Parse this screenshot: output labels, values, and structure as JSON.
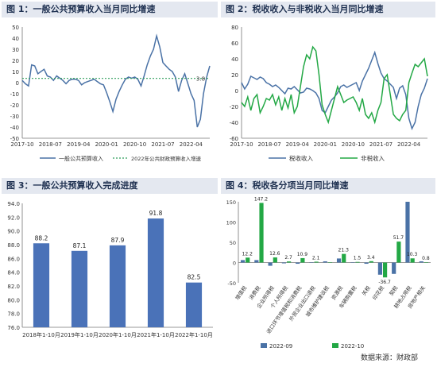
{
  "source": "数据来源：财政部",
  "chart_data": [
    {
      "id": "fig1",
      "type": "line",
      "title": "图 1：一般公共预算收入当月同比增速",
      "ylim": [
        -50,
        50
      ],
      "y_ticks": [
        "50",
        "40",
        "30",
        "20",
        "10",
        "0",
        "-10",
        "-20",
        "-30",
        "-40",
        "-50"
      ],
      "x_ticks": [
        "2017-10",
        "2018-07",
        "2019-04",
        "2020-01",
        "2020-10",
        "2021-07",
        "2022-04"
      ],
      "x": [
        "2017-10",
        "2017-11",
        "2017-12",
        "2018-01",
        "2018-02",
        "2018-03",
        "2018-04",
        "2018-05",
        "2018-06",
        "2018-07",
        "2018-08",
        "2018-09",
        "2018-10",
        "2018-11",
        "2018-12",
        "2019-01",
        "2019-02",
        "2019-03",
        "2019-04",
        "2019-05",
        "2019-06",
        "2019-07",
        "2019-08",
        "2019-09",
        "2019-10",
        "2019-11",
        "2019-12",
        "2020-01",
        "2020-02",
        "2020-03",
        "2020-04",
        "2020-05",
        "2020-06",
        "2020-07",
        "2020-08",
        "2020-09",
        "2020-10",
        "2020-11",
        "2020-12",
        "2021-01",
        "2021-02",
        "2021-03",
        "2021-04",
        "2021-05",
        "2021-06",
        "2021-07",
        "2021-08",
        "2021-09",
        "2021-10",
        "2021-11",
        "2021-12",
        "2022-01",
        "2022-02",
        "2022-03",
        "2022-04",
        "2022-05",
        "2022-06",
        "2022-07",
        "2022-08",
        "2022-09",
        "2022-10"
      ],
      "series": [
        {
          "name": "一般公共预算收入",
          "color": "#4a72a6",
          "values": [
            2,
            -1,
            -3,
            16,
            15,
            8,
            10,
            12,
            6,
            5,
            2,
            6,
            4,
            2,
            -1,
            2,
            3,
            3,
            2,
            -2,
            0,
            1,
            2,
            3,
            1,
            -1,
            -2,
            -9,
            -17,
            -26,
            -15,
            -8,
            -2,
            3,
            5,
            4,
            5,
            3,
            -3,
            6,
            16,
            24,
            30,
            42,
            32,
            18,
            15,
            12,
            10,
            5,
            -8,
            2,
            8,
            -1,
            -10,
            -16,
            -40,
            -33,
            -10,
            5,
            15
          ]
        },
        {
          "name": "2022年公共财政预算收入增速",
          "color": "#2e9e5b",
          "dashed": true,
          "values": [
            3.8,
            3.8,
            3.8,
            3.8,
            3.8,
            3.8,
            3.8,
            3.8,
            3.8,
            3.8,
            3.8,
            3.8,
            3.8,
            3.8,
            3.8,
            3.8,
            3.8,
            3.8,
            3.8,
            3.8,
            3.8,
            3.8,
            3.8,
            3.8,
            3.8,
            3.8,
            3.8,
            3.8,
            3.8,
            3.8,
            3.8,
            3.8,
            3.8,
            3.8,
            3.8,
            3.8,
            3.8,
            3.8,
            3.8,
            3.8,
            3.8,
            3.8,
            3.8,
            3.8,
            3.8,
            3.8,
            3.8,
            3.8,
            3.8,
            3.8,
            3.8,
            3.8,
            3.8,
            3.8,
            3.8,
            3.8,
            3.8,
            3.8,
            3.8,
            3.8,
            3.8
          ]
        }
      ],
      "annotation": "3.8"
    },
    {
      "id": "fig2",
      "type": "line",
      "title": "图 2：税收收入与非税收入当月同比增速",
      "ylim": [
        -60,
        80
      ],
      "y_ticks": [
        "80",
        "60",
        "40",
        "20",
        "0",
        "-20",
        "-40",
        "-60"
      ],
      "x_ticks": [
        "2017-10",
        "2018-07",
        "2019-04",
        "2020-01",
        "2020-10",
        "2021-07",
        "2022-04"
      ],
      "x": [
        "2017-10",
        "2017-11",
        "2017-12",
        "2018-01",
        "2018-02",
        "2018-03",
        "2018-04",
        "2018-05",
        "2018-06",
        "2018-07",
        "2018-08",
        "2018-09",
        "2018-10",
        "2018-11",
        "2018-12",
        "2019-01",
        "2019-02",
        "2019-03",
        "2019-04",
        "2019-05",
        "2019-06",
        "2019-07",
        "2019-08",
        "2019-09",
        "2019-10",
        "2019-11",
        "2019-12",
        "2020-01",
        "2020-02",
        "2020-03",
        "2020-04",
        "2020-05",
        "2020-06",
        "2020-07",
        "2020-08",
        "2020-09",
        "2020-10",
        "2020-11",
        "2020-12",
        "2021-01",
        "2021-02",
        "2021-03",
        "2021-04",
        "2021-05",
        "2021-06",
        "2021-07",
        "2021-08",
        "2021-09",
        "2021-10",
        "2021-11",
        "2021-12",
        "2022-01",
        "2022-02",
        "2022-03",
        "2022-04",
        "2022-05",
        "2022-06",
        "2022-07",
        "2022-08",
        "2022-09",
        "2022-10"
      ],
      "series": [
        {
          "name": "税收收入",
          "color": "#4a72a6",
          "values": [
            10,
            2,
            8,
            18,
            16,
            14,
            17,
            15,
            10,
            8,
            5,
            7,
            4,
            0,
            -4,
            3,
            2,
            5,
            1,
            -3,
            -2,
            3,
            2,
            0,
            -3,
            -10,
            -25,
            -28,
            -20,
            -12,
            -8,
            -3,
            5,
            7,
            4,
            6,
            8,
            10,
            0,
            12,
            20,
            28,
            38,
            48,
            34,
            22,
            15,
            12,
            8,
            4,
            -10,
            3,
            6,
            -5,
            -35,
            -48,
            -40,
            -20,
            -5,
            3,
            15
          ]
        },
        {
          "name": "非税收入",
          "color": "#23a845",
          "values": [
            -15,
            -20,
            -8,
            -25,
            -10,
            -5,
            -28,
            -20,
            -10,
            -12,
            -5,
            -18,
            -8,
            -25,
            -10,
            -22,
            -5,
            -28,
            -20,
            5,
            30,
            45,
            40,
            55,
            50,
            20,
            -18,
            -30,
            -40,
            -25,
            -10,
            5,
            -5,
            -15,
            -12,
            -10,
            -8,
            -15,
            -25,
            -10,
            -30,
            -35,
            -28,
            -40,
            -25,
            -15,
            15,
            20,
            -5,
            -30,
            -35,
            -38,
            -30,
            -25,
            10,
            22,
            33,
            30,
            35,
            40,
            18
          ]
        }
      ]
    },
    {
      "id": "fig3",
      "type": "bar",
      "title": "图 3：一般公共预算收入完成进度",
      "ylim": [
        76,
        94
      ],
      "y_ticks": [
        "94.0",
        "92.0",
        "90.0",
        "88.0",
        "86.0",
        "84.0",
        "82.0",
        "80.0",
        "78.0",
        "76.0"
      ],
      "categories": [
        "2018年1-10月",
        "2019年1-10月",
        "2020年1-10月",
        "2021年1-10月",
        "2022年1-10月"
      ],
      "values": [
        88.2,
        87.1,
        87.9,
        91.8,
        82.5
      ],
      "labels": [
        "88.2",
        "87.1",
        "87.9",
        "91.8",
        "82.5"
      ],
      "color": "#4a72b8"
    },
    {
      "id": "fig4",
      "type": "bar",
      "title": "图 4：税收各分项当月同比增速",
      "ylim": [
        -50,
        150
      ],
      "y_ticks": [
        "150",
        "100",
        "50",
        "0",
        "-50"
      ],
      "categories": [
        "增值税",
        "消费税",
        "企业所得税",
        "个人所得税",
        "进口环节增值税和消费税",
        "外贸企业出口退税",
        "城市维护建设税",
        "资源税",
        "车辆购置税",
        "关税",
        "印花税",
        "契税",
        "耕地占用税",
        "房地产相关"
      ],
      "series": [
        {
          "name": "2022-09",
          "color": "#4a72a6",
          "values": [
            6,
            6,
            -8,
            -2,
            -3,
            0.5,
            3,
            10,
            1,
            -3,
            -30,
            -28,
            150,
            3
          ]
        },
        {
          "name": "2022-10",
          "color": "#23a845",
          "values": [
            12.2,
            147.2,
            12.6,
            2.7,
            10.9,
            2.1,
            0.2,
            21.3,
            1.5,
            3.4,
            -36.7,
            51.7,
            10.3,
            0.8
          ]
        }
      ],
      "labels": [
        {
          "text": "12.2",
          "cat": 0,
          "v": 12.2
        },
        {
          "text": "147.2",
          "cat": 1,
          "v": 147.2
        },
        {
          "text": "12.6",
          "cat": 2,
          "v": 12.6
        },
        {
          "text": "2.7",
          "cat": 3,
          "v": 2.7
        },
        {
          "text": "10.9",
          "cat": 4,
          "v": 10.9
        },
        {
          "text": "2.1",
          "cat": 5,
          "v": 2.1
        },
        {
          "text": "21.3",
          "cat": 7,
          "v": 21.3
        },
        {
          "text": "1.5",
          "cat": 8,
          "v": 1.5
        },
        {
          "text": "3.4",
          "cat": 9,
          "v": 3.4
        },
        {
          "text": "-36.7",
          "cat": 10,
          "v": -36.7
        },
        {
          "text": "51.7",
          "cat": 11,
          "v": 51.7
        },
        {
          "text": "10.3",
          "cat": 12,
          "v": 10.3
        },
        {
          "text": "0.8",
          "cat": 13,
          "v": 0.8
        }
      ]
    }
  ]
}
